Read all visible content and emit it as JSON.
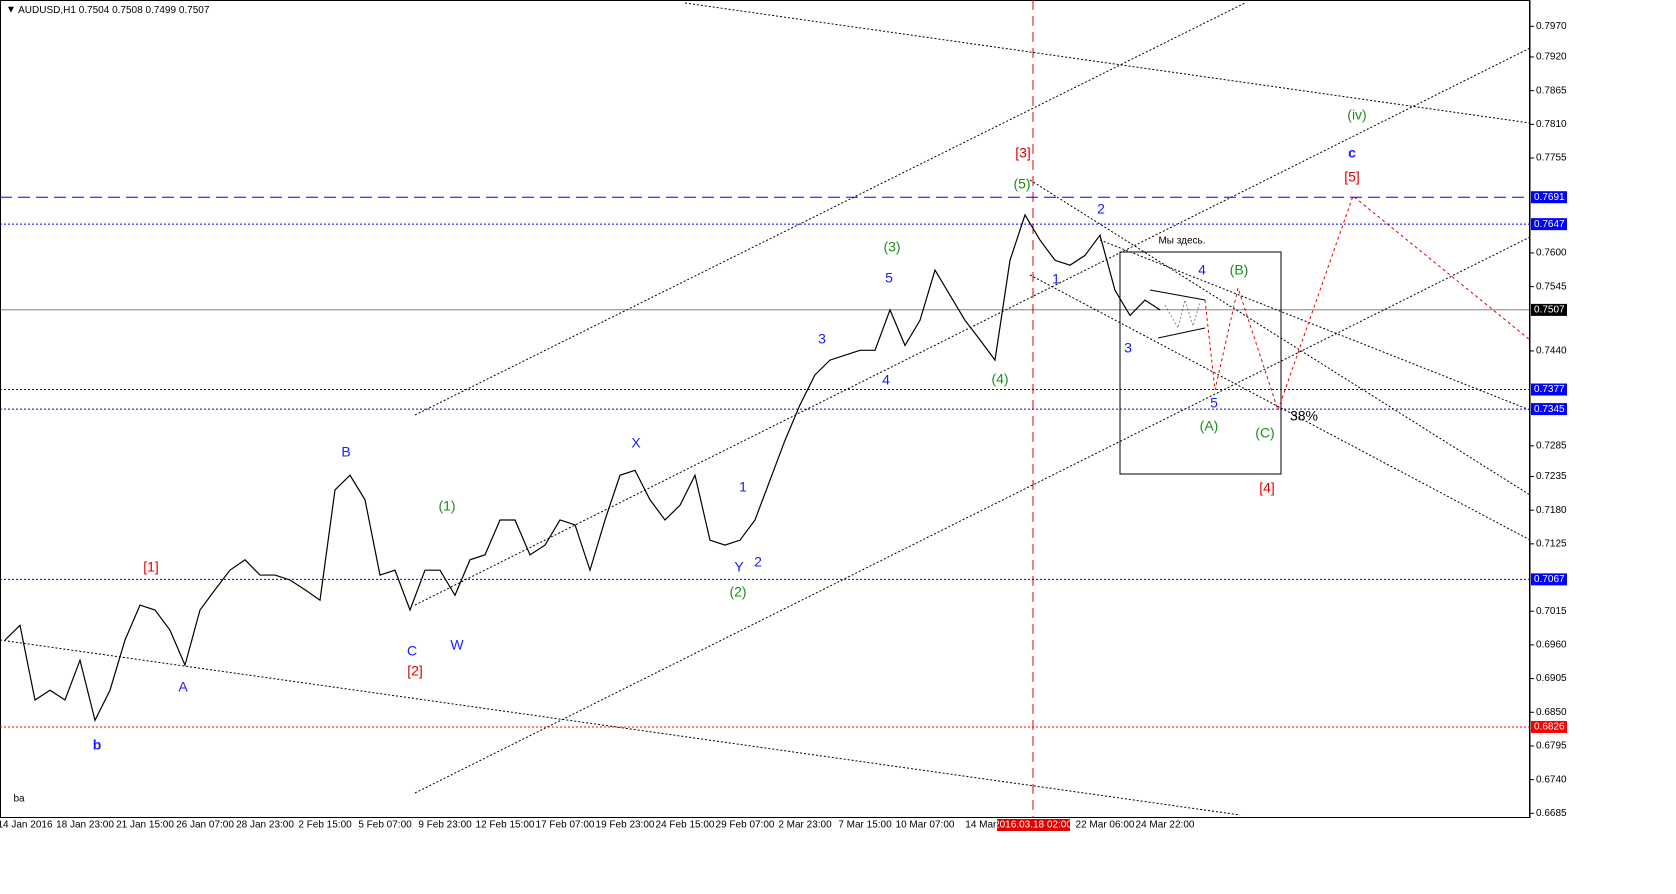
{
  "chart_data": {
    "type": "line",
    "symbol": "AUDUSD,H1",
    "ohlc": [
      0.7504,
      0.7508,
      0.7499,
      0.7507
    ],
    "color": "#000000",
    "ylim": [
      0.6679,
      0.8013
    ],
    "yticks": [
      {
        "value": 0.797,
        "label": "0.7970"
      },
      {
        "value": 0.792,
        "label": "0.7920"
      },
      0.7865,
      {
        "value": 0.781,
        "label": "0.7810"
      },
      0.7755,
      {
        "value": 0.76,
        "label": "0.7600"
      },
      0.7545,
      {
        "value": 0.744,
        "label": "0.7440"
      },
      0.7285,
      0.7235,
      {
        "value": 0.718,
        "label": "0.7180"
      },
      0.7125,
      0.7015,
      {
        "value": 0.696,
        "label": "0.6960"
      },
      0.6905,
      {
        "value": 0.685,
        "label": "0.6850"
      },
      0.6795,
      {
        "value": 0.674,
        "label": "0.6740"
      },
      0.6685
    ],
    "x_labels": [
      "14 Jan 2016",
      "18 Jan 23:00",
      "21 Jan 15:00",
      "26 Jan 07:00",
      "28 Jan 23:00",
      "2 Feb 15:00",
      "5 Feb 07:00",
      "9 Feb 23:00",
      "12 Feb 15:00",
      "17 Feb 07:00",
      "19 Feb 23:00",
      "24 Feb 15:00",
      "29 Feb 07:00",
      "2 Mar 23:00",
      "7 Mar 15:00",
      "10 Mar 07:00",
      "14 Mar 2",
      null,
      "22 Mar 06:00",
      "24 Mar 22:00"
    ],
    "cursor_label": "2016.03.18 02:00",
    "values": [
      0.6968,
      0.6992,
      0.687,
      0.6886,
      0.687,
      0.6935,
      0.6837,
      0.6886,
      0.6968,
      0.7025,
      0.7017,
      0.6984,
      0.6927,
      0.7017,
      0.705,
      0.7082,
      0.7099,
      0.7074,
      0.7074,
      0.7066,
      0.705,
      0.7033,
      0.7213,
      0.7237,
      0.7197,
      0.7074,
      0.7082,
      0.7017,
      0.7082,
      0.7082,
      0.7041,
      0.7099,
      0.7107,
      0.7164,
      0.7164,
      0.7107,
      0.7123,
      0.7164,
      0.7156,
      0.7082,
      0.7164,
      0.7237,
      0.7245,
      0.7197,
      0.7164,
      0.7188,
      0.7237,
      0.7131,
      0.7123,
      0.7131,
      0.7164,
      0.7229,
      0.7294,
      0.7352,
      0.7401,
      0.7425,
      0.7433,
      0.7441,
      0.7441,
      0.7507,
      0.7449,
      0.749,
      0.7572,
      0.7531,
      0.749,
      0.7458,
      0.7425,
      0.7588,
      0.7662,
      0.7621,
      0.7588,
      0.758,
      0.7596,
      0.7629,
      0.7539,
      0.7498,
      0.7523,
      0.7507
    ],
    "levels": [
      {
        "value": 0.7691,
        "color": "#0000ff",
        "style": "dashed"
      },
      {
        "value": 0.7647,
        "color": "#0000ff",
        "style": "dotted"
      },
      {
        "value": 0.7507,
        "color": "#000000",
        "style": "solid"
      },
      {
        "value": 0.7377,
        "color": "#0000ff",
        "style": "dotted"
      },
      {
        "value": 0.7345,
        "color": "#0000ff",
        "style": "dotted"
      },
      {
        "value": 0.7067,
        "color": "#0000ff",
        "style": "dotted"
      },
      {
        "value": 0.6826,
        "color": "#ff0000",
        "style": "dotted"
      }
    ],
    "annotations": [
      {
        "text": "[1]",
        "color": "#e00000"
      },
      {
        "text": "A",
        "color": "#1a1aff"
      },
      {
        "text": "b",
        "color": "#1a1aff"
      },
      {
        "text": "B",
        "color": "#1a1aff"
      },
      {
        "text": "C",
        "color": "#1a1aff"
      },
      {
        "text": "[2]",
        "color": "#e00000"
      },
      {
        "text": "W",
        "color": "#1a1aff"
      },
      {
        "text": "(1)",
        "color": "#1a8c1a"
      },
      {
        "text": "X",
        "color": "#1a1aff"
      },
      {
        "text": "Y",
        "color": "#1a1aff"
      },
      {
        "text": "(2)",
        "color": "#1a8c1a"
      },
      {
        "text": "1",
        "color": "#1a1aff"
      },
      {
        "text": "2",
        "color": "#1a1aff"
      },
      {
        "text": "3",
        "color": "#1a1aff"
      },
      {
        "text": "4",
        "color": "#1a1aff"
      },
      {
        "text": "5",
        "color": "#1a1aff"
      },
      {
        "text": "(3)",
        "color": "#1a8c1a"
      },
      {
        "text": "(4)",
        "color": "#1a8c1a"
      },
      {
        "text": "(5)",
        "color": "#1a8c1a"
      },
      {
        "text": "[3]",
        "color": "#e00000"
      },
      {
        "text": "1",
        "color": "#1a1aff"
      },
      {
        "text": "2",
        "color": "#1a1aff"
      },
      {
        "text": "3",
        "color": "#1a1aff"
      },
      {
        "text": "4",
        "color": "#1a1aff"
      },
      {
        "text": "(B)",
        "color": "#1a8c1a"
      },
      {
        "text": "5",
        "color": "#1a1aff"
      },
      {
        "text": "(A)",
        "color": "#1a8c1a"
      },
      {
        "text": "(C)",
        "color": "#1a8c1a"
      },
      {
        "text": "[4]",
        "color": "#e00000"
      },
      {
        "text": "38%",
        "color": "#000000"
      },
      {
        "text": "[5]",
        "color": "#e00000"
      },
      {
        "text": "c",
        "color": "#1a1aff"
      },
      {
        "text": "(iv)",
        "color": "#1a8c1a"
      },
      {
        "text": "Мы здесь.",
        "color": "#000000"
      },
      {
        "text": "ba",
        "color": "#000000"
      }
    ]
  }
}
